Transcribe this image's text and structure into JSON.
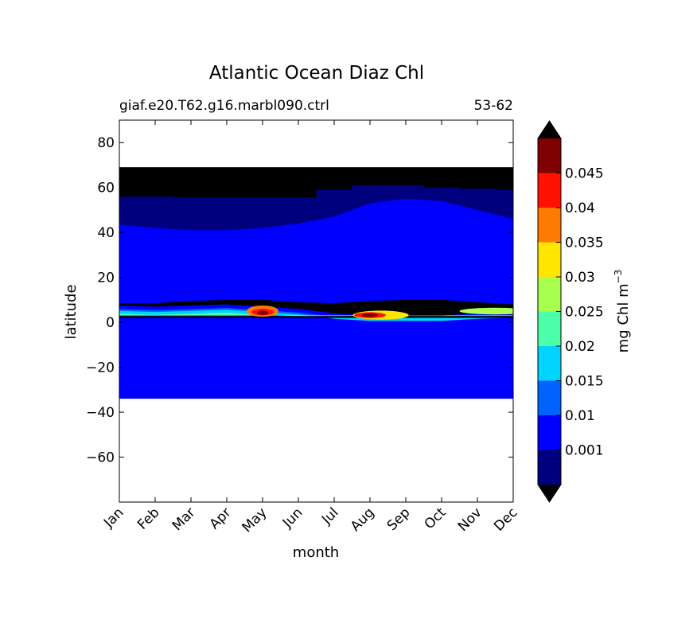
{
  "chart_data": {
    "type": "heatmap",
    "title": "Atlantic Ocean Diaz Chl",
    "subtitle_left": "giaf.e20.T62.g16.marbl090.ctrl",
    "subtitle_right": "53-62",
    "xlabel": "month",
    "ylabel": "latitude",
    "x_categories": [
      "Jan",
      "Feb",
      "Mar",
      "Apr",
      "May",
      "Jun",
      "Jul",
      "Aug",
      "Sep",
      "Oct",
      "Nov",
      "Dec"
    ],
    "ylim": [
      -80,
      90
    ],
    "yticks": [
      "80",
      "60",
      "40",
      "20",
      "0",
      "−20",
      "−40",
      "−60"
    ],
    "ytick_values": [
      80,
      60,
      40,
      20,
      0,
      -20,
      -40,
      -60
    ],
    "grid": false,
    "colorbar": {
      "label": "mg Chl m",
      "label_sup": "−3",
      "extend": "both",
      "levels": [
        0,
        0.001,
        0.01,
        0.015,
        0.02,
        0.025,
        0.03,
        0.035,
        0.04,
        0.045,
        0.05
      ],
      "tick_labels": [
        "0.001",
        "0.01",
        "0.015",
        "0.02",
        "0.025",
        "0.03",
        "0.035",
        "0.04",
        "0.045"
      ],
      "tick_values": [
        0.001,
        0.01,
        0.015,
        0.02,
        0.025,
        0.03,
        0.035,
        0.04,
        0.045
      ],
      "colors": [
        "#00007f",
        "#0000ff",
        "#0063ff",
        "#00d4ff",
        "#4effa9",
        "#a9ff4e",
        "#ffe500",
        "#ff7a00",
        "#ff1300",
        "#7f0000"
      ],
      "under_color": "#000000",
      "over_color": "#000000"
    },
    "regions": {
      "land_mask_color": "#000000",
      "land_north_top": 69,
      "land_south_edge": [
        56,
        56,
        55.5,
        55.5,
        55.5,
        55.5,
        59,
        61,
        61,
        60,
        59.5,
        59
      ],
      "band_001_to_01_south_edge": [
        43.5,
        42,
        41,
        41,
        42,
        44,
        47,
        53,
        55,
        54,
        50,
        46
      ],
      "ocean_south_edge": -34,
      "itcz_black_bottom": [
        7.5,
        7,
        7.5,
        8,
        7,
        6,
        4,
        3,
        3,
        3,
        4,
        4.5
      ],
      "itcz_black_top": [
        8.5,
        8.5,
        9.5,
        10,
        10,
        9,
        8.5,
        9.5,
        10,
        10,
        9,
        8
      ],
      "itcz_peak_month": [
        "May",
        "Aug"
      ]
    }
  }
}
